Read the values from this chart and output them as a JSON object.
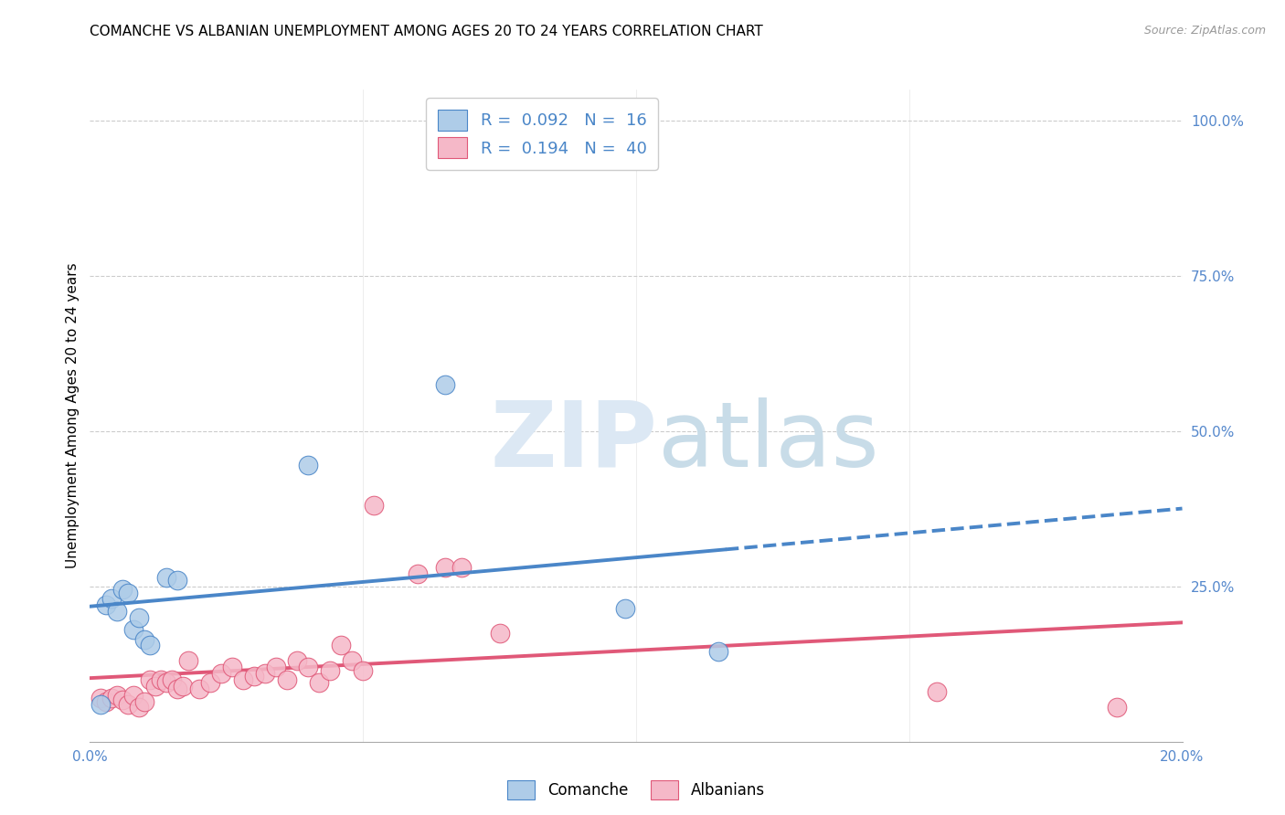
{
  "title": "COMANCHE VS ALBANIAN UNEMPLOYMENT AMONG AGES 20 TO 24 YEARS CORRELATION CHART",
  "source": "Source: ZipAtlas.com",
  "ylabel": "Unemployment Among Ages 20 to 24 years",
  "xlim": [
    0.0,
    0.2
  ],
  "ylim": [
    0.0,
    1.05
  ],
  "comanche_r": 0.092,
  "comanche_n": 16,
  "albanian_r": 0.194,
  "albanian_n": 40,
  "comanche_color": "#aecce8",
  "albanian_color": "#f5b8c8",
  "comanche_line_color": "#4a86c8",
  "albanian_line_color": "#e05878",
  "comanche_x": [
    0.002,
    0.003,
    0.004,
    0.005,
    0.006,
    0.007,
    0.008,
    0.009,
    0.01,
    0.011,
    0.014,
    0.016,
    0.04,
    0.065,
    0.098,
    0.115
  ],
  "comanche_y": [
    0.06,
    0.22,
    0.23,
    0.21,
    0.245,
    0.24,
    0.18,
    0.2,
    0.165,
    0.155,
    0.265,
    0.26,
    0.445,
    0.575,
    0.215,
    0.145
  ],
  "albanian_x": [
    0.002,
    0.003,
    0.004,
    0.005,
    0.006,
    0.007,
    0.008,
    0.009,
    0.01,
    0.011,
    0.012,
    0.013,
    0.014,
    0.015,
    0.016,
    0.017,
    0.018,
    0.02,
    0.022,
    0.024,
    0.026,
    0.028,
    0.03,
    0.032,
    0.034,
    0.036,
    0.038,
    0.04,
    0.042,
    0.044,
    0.046,
    0.048,
    0.05,
    0.052,
    0.06,
    0.065,
    0.068,
    0.075,
    0.155,
    0.188
  ],
  "albanian_y": [
    0.07,
    0.065,
    0.07,
    0.075,
    0.068,
    0.06,
    0.075,
    0.055,
    0.065,
    0.1,
    0.09,
    0.1,
    0.095,
    0.1,
    0.085,
    0.09,
    0.13,
    0.085,
    0.095,
    0.11,
    0.12,
    0.1,
    0.105,
    0.11,
    0.12,
    0.1,
    0.13,
    0.12,
    0.095,
    0.115,
    0.155,
    0.13,
    0.115,
    0.38,
    0.27,
    0.28,
    0.28,
    0.175,
    0.08,
    0.055
  ],
  "background_color": "#ffffff",
  "grid_color": "#cccccc",
  "watermark_zip_color": "#dce8f0",
  "watermark_atlas_color": "#dce8f0"
}
